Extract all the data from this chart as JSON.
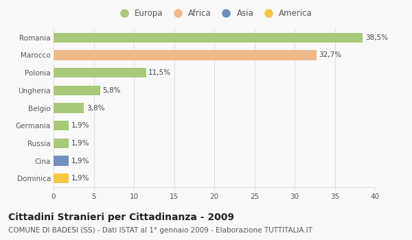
{
  "categories": [
    "Dominica",
    "Cina",
    "Russia",
    "Germania",
    "Belgio",
    "Ungheria",
    "Polonia",
    "Marocco",
    "Romania"
  ],
  "values": [
    1.9,
    1.9,
    1.9,
    1.9,
    3.8,
    5.8,
    11.5,
    32.7,
    38.5
  ],
  "colors": [
    "#f5c842",
    "#6f8fbd",
    "#a8c97a",
    "#a8c97a",
    "#a8c97a",
    "#a8c97a",
    "#a8c97a",
    "#f0b98a",
    "#a8c97a"
  ],
  "labels": [
    "1,9%",
    "1,9%",
    "1,9%",
    "1,9%",
    "3,8%",
    "5,8%",
    "11,5%",
    "32,7%",
    "38,5%"
  ],
  "legend_labels": [
    "Europa",
    "Africa",
    "Asia",
    "America"
  ],
  "legend_colors": [
    "#a8c97a",
    "#f0b98a",
    "#6f8fbd",
    "#f5c842"
  ],
  "title": "Cittadini Stranieri per Cittadinanza - 2009",
  "subtitle": "COMUNE DI BADESI (SS) - Dati ISTAT al 1° gennaio 2009 - Elaborazione TUTTITALIA.IT",
  "xlim": [
    0,
    40
  ],
  "xticks": [
    0,
    5,
    10,
    15,
    20,
    25,
    30,
    35,
    40
  ],
  "background_color": "#f9f9f9",
  "bar_height": 0.55,
  "title_fontsize": 10,
  "subtitle_fontsize": 7.5,
  "label_fontsize": 7.5,
  "tick_fontsize": 7.5,
  "legend_fontsize": 8.5
}
